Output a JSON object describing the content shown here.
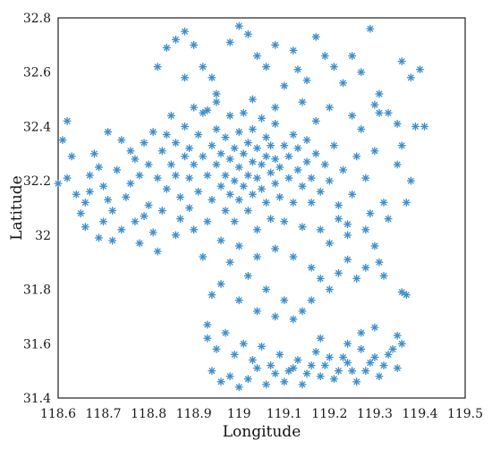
{
  "chart_data": {
    "type": "scatter",
    "title": "",
    "xlabel": "Longitude",
    "ylabel": "Latitude",
    "xlim": [
      118.6,
      119.5
    ],
    "ylim": [
      31.4,
      32.8
    ],
    "x_ticks": [
      118.6,
      118.7,
      118.8,
      118.9,
      119,
      119.1,
      119.2,
      119.3,
      119.4,
      119.5
    ],
    "x_tick_labels": [
      "118.6",
      "118.7",
      "118.8",
      "118.9",
      "119",
      "119.1",
      "119.2",
      "119.3",
      "119.4",
      "119.5"
    ],
    "y_ticks": [
      31.4,
      31.6,
      31.8,
      32,
      32.2,
      32.4,
      32.6,
      32.8
    ],
    "y_tick_labels": [
      "31.4",
      "31.6",
      "31.8",
      "32",
      "32.2",
      "32.4",
      "32.6",
      "32.8"
    ],
    "grid": true,
    "legend": "none",
    "marker": "asterisk",
    "series_color": "#3b8fcf",
    "series": [
      {
        "points": [
          [
            118.61,
            32.35
          ],
          [
            118.63,
            32.29
          ],
          [
            118.62,
            32.21
          ],
          [
            118.64,
            32.15
          ],
          [
            118.6,
            32.19
          ],
          [
            118.66,
            32.12
          ],
          [
            118.66,
            32.03
          ],
          [
            118.67,
            32.16
          ],
          [
            118.68,
            32.3
          ],
          [
            118.69,
            32.25
          ],
          [
            118.7,
            32.18
          ],
          [
            118.71,
            32.38
          ],
          [
            118.7,
            32.05
          ],
          [
            118.72,
            32.09
          ],
          [
            118.72,
            31.98
          ],
          [
            118.73,
            32.24
          ],
          [
            118.74,
            32.35
          ],
          [
            118.75,
            32.14
          ],
          [
            118.76,
            32.31
          ],
          [
            118.77,
            32.28
          ],
          [
            118.77,
            32.05
          ],
          [
            118.78,
            32.22
          ],
          [
            118.78,
            31.97
          ],
          [
            118.79,
            32.34
          ],
          [
            118.8,
            32.26
          ],
          [
            118.8,
            32.11
          ],
          [
            118.81,
            32.38
          ],
          [
            118.81,
            32.01
          ],
          [
            118.82,
            32.21
          ],
          [
            118.82,
            31.94
          ],
          [
            118.83,
            32.31
          ],
          [
            118.83,
            32.09
          ],
          [
            118.84,
            32.17
          ],
          [
            118.85,
            32.26
          ],
          [
            118.85,
            32.44
          ],
          [
            118.86,
            32.0
          ],
          [
            118.86,
            32.22
          ],
          [
            118.86,
            32.34
          ],
          [
            118.87,
            32.14
          ],
          [
            118.87,
            32.06
          ],
          [
            118.88,
            32.29
          ],
          [
            118.88,
            32.4
          ],
          [
            118.89,
            32.21
          ],
          [
            118.89,
            32.1
          ],
          [
            118.89,
            32.32
          ],
          [
            118.9,
            32.26
          ],
          [
            118.9,
            32.02
          ],
          [
            118.91,
            32.37
          ],
          [
            118.91,
            32.16
          ],
          [
            118.92,
            32.29
          ],
          [
            118.92,
            32.45
          ],
          [
            118.93,
            32.22
          ],
          [
            118.93,
            32.05
          ],
          [
            118.94,
            32.33
          ],
          [
            118.94,
            32.13
          ],
          [
            118.95,
            32.39
          ],
          [
            118.95,
            32.26
          ],
          [
            118.95,
            32.49
          ],
          [
            118.96,
            32.18
          ],
          [
            118.96,
            32.3
          ],
          [
            118.97,
            32.09
          ],
          [
            118.97,
            32.22
          ],
          [
            118.97,
            32.36
          ],
          [
            118.98,
            32.28
          ],
          [
            118.98,
            32.15
          ],
          [
            118.98,
            32.44
          ],
          [
            118.99,
            32.32
          ],
          [
            118.99,
            32.2
          ],
          [
            118.99,
            32.05
          ],
          [
            119.0,
            32.25
          ],
          [
            119.0,
            32.38
          ],
          [
            119.0,
            32.13
          ],
          [
            119.01,
            32.3
          ],
          [
            119.01,
            32.18
          ],
          [
            119.01,
            32.45
          ],
          [
            119.02,
            32.22
          ],
          [
            119.02,
            32.34
          ],
          [
            119.02,
            32.09
          ],
          [
            119.03,
            32.27
          ],
          [
            119.03,
            32.15
          ],
          [
            119.03,
            32.39
          ],
          [
            119.04,
            32.21
          ],
          [
            119.04,
            32.32
          ],
          [
            119.04,
            32.02
          ],
          [
            119.05,
            32.26
          ],
          [
            119.05,
            32.17
          ],
          [
            119.05,
            32.43
          ],
          [
            119.06,
            32.29
          ],
          [
            119.06,
            32.12
          ],
          [
            119.06,
            32.36
          ],
          [
            119.07,
            32.23
          ],
          [
            119.07,
            32.06
          ],
          [
            119.07,
            32.33
          ],
          [
            119.08,
            32.19
          ],
          [
            119.08,
            32.28
          ],
          [
            119.08,
            32.41
          ],
          [
            119.09,
            32.14
          ],
          [
            119.09,
            32.25
          ],
          [
            119.1,
            32.33
          ],
          [
            119.1,
            32.05
          ],
          [
            119.11,
            32.21
          ],
          [
            119.11,
            32.29
          ],
          [
            119.12,
            32.37
          ],
          [
            119.12,
            32.12
          ],
          [
            119.13,
            32.24
          ],
          [
            119.13,
            32.32
          ],
          [
            119.14,
            32.18
          ],
          [
            119.14,
            32.03
          ],
          [
            119.15,
            32.27
          ],
          [
            119.15,
            32.35
          ],
          [
            119.16,
            32.21
          ],
          [
            119.16,
            32.12
          ],
          [
            119.17,
            32.3
          ],
          [
            119.17,
            32.42
          ],
          [
            119.18,
            32.16
          ],
          [
            119.18,
            32.02
          ],
          [
            119.19,
            32.26
          ],
          [
            119.2,
            32.2
          ],
          [
            119.21,
            32.33
          ],
          [
            119.22,
            32.11
          ],
          [
            119.23,
            32.24
          ],
          [
            119.24,
            32.04
          ],
          [
            119.25,
            32.15
          ],
          [
            119.26,
            32.29
          ],
          [
            119.27,
            32.39
          ],
          [
            119.28,
            32.21
          ],
          [
            119.29,
            32.08
          ],
          [
            119.3,
            32.31
          ],
          [
            119.31,
            32.45
          ],
          [
            119.32,
            32.12
          ],
          [
            118.62,
            32.42
          ],
          [
            118.65,
            32.08
          ],
          [
            118.67,
            32.22
          ],
          [
            118.69,
            31.99
          ],
          [
            118.71,
            32.13
          ],
          [
            118.74,
            32.02
          ],
          [
            118.76,
            32.19
          ],
          [
            118.79,
            32.07
          ],
          [
            118.84,
            32.37
          ],
          [
            118.9,
            32.47
          ],
          [
            118.84,
            32.69
          ],
          [
            118.86,
            32.72
          ],
          [
            118.88,
            32.75
          ],
          [
            118.9,
            32.7
          ],
          [
            118.92,
            32.62
          ],
          [
            118.94,
            32.58
          ],
          [
            118.95,
            32.52
          ],
          [
            118.98,
            32.71
          ],
          [
            119.0,
            32.77
          ],
          [
            119.02,
            32.74
          ],
          [
            119.04,
            32.66
          ],
          [
            119.06,
            32.62
          ],
          [
            119.08,
            32.7
          ],
          [
            119.1,
            32.55
          ],
          [
            119.12,
            32.68
          ],
          [
            119.13,
            32.61
          ],
          [
            119.15,
            32.57
          ],
          [
            119.17,
            32.73
          ],
          [
            119.19,
            32.66
          ],
          [
            119.21,
            32.62
          ],
          [
            119.23,
            32.56
          ],
          [
            119.25,
            32.66
          ],
          [
            119.27,
            32.6
          ],
          [
            119.29,
            32.76
          ],
          [
            119.31,
            32.52
          ],
          [
            119.33,
            32.45
          ],
          [
            119.36,
            32.64
          ],
          [
            119.38,
            32.58
          ],
          [
            119.4,
            32.61
          ],
          [
            118.88,
            32.58
          ],
          [
            118.82,
            32.62
          ],
          [
            118.93,
            32.46
          ],
          [
            119.03,
            32.5
          ],
          [
            119.08,
            32.47
          ],
          [
            119.14,
            32.49
          ],
          [
            119.2,
            32.47
          ],
          [
            119.25,
            32.44
          ],
          [
            119.3,
            32.48
          ],
          [
            119.35,
            32.41
          ],
          [
            119.39,
            32.4
          ],
          [
            119.41,
            32.4
          ],
          [
            119.36,
            32.33
          ],
          [
            119.38,
            32.2
          ],
          [
            119.37,
            32.12
          ],
          [
            119.35,
            32.26
          ],
          [
            119.33,
            32.06
          ],
          [
            119.3,
            31.96
          ],
          [
            119.28,
            31.88
          ],
          [
            119.26,
            31.84
          ],
          [
            119.24,
            31.91
          ],
          [
            119.22,
            31.86
          ],
          [
            119.2,
            31.8
          ],
          [
            119.18,
            31.84
          ],
          [
            119.16,
            31.76
          ],
          [
            119.14,
            31.72
          ],
          [
            119.12,
            31.69
          ],
          [
            119.1,
            31.76
          ],
          [
            119.08,
            31.7
          ],
          [
            119.06,
            31.8
          ],
          [
            119.04,
            31.72
          ],
          [
            119.02,
            31.85
          ],
          [
            119.0,
            31.76
          ],
          [
            118.98,
            31.9
          ],
          [
            118.96,
            31.82
          ],
          [
            118.94,
            31.78
          ],
          [
            118.92,
            31.92
          ],
          [
            118.96,
            31.98
          ],
          [
            119.0,
            31.96
          ],
          [
            119.04,
            31.92
          ],
          [
            119.08,
            31.95
          ],
          [
            119.12,
            31.92
          ],
          [
            119.16,
            31.88
          ],
          [
            119.2,
            31.97
          ],
          [
            119.24,
            32.0
          ],
          [
            119.28,
            32.02
          ],
          [
            119.32,
            31.85
          ],
          [
            119.36,
            31.79
          ],
          [
            119.37,
            31.78
          ],
          [
            119.31,
            31.9
          ],
          [
            119.22,
            32.06
          ],
          [
            118.93,
            31.62
          ],
          [
            118.95,
            31.58
          ],
          [
            118.97,
            31.64
          ],
          [
            118.99,
            31.56
          ],
          [
            119.01,
            31.6
          ],
          [
            119.03,
            31.54
          ],
          [
            119.05,
            31.59
          ],
          [
            119.07,
            31.52
          ],
          [
            119.09,
            31.56
          ],
          [
            119.11,
            31.5
          ],
          [
            119.13,
            31.54
          ],
          [
            119.15,
            31.49
          ],
          [
            119.17,
            31.57
          ],
          [
            119.19,
            31.52
          ],
          [
            119.21,
            31.47
          ],
          [
            119.23,
            31.55
          ],
          [
            119.25,
            31.5
          ],
          [
            119.27,
            31.58
          ],
          [
            119.29,
            31.53
          ],
          [
            119.31,
            31.48
          ],
          [
            119.33,
            31.56
          ],
          [
            119.35,
            31.51
          ],
          [
            119.36,
            31.6
          ],
          [
            118.94,
            31.5
          ],
          [
            118.96,
            31.46
          ],
          [
            118.98,
            31.48
          ],
          [
            119.0,
            31.44
          ],
          [
            119.02,
            31.47
          ],
          [
            119.04,
            31.51
          ],
          [
            119.06,
            31.45
          ],
          [
            119.08,
            31.49
          ],
          [
            119.1,
            31.46
          ],
          [
            119.12,
            31.51
          ],
          [
            119.14,
            31.45
          ],
          [
            119.16,
            31.52
          ],
          [
            119.18,
            31.48
          ],
          [
            119.2,
            31.55
          ],
          [
            119.22,
            31.5
          ],
          [
            119.24,
            31.53
          ],
          [
            119.26,
            31.46
          ],
          [
            119.28,
            31.5
          ],
          [
            119.3,
            31.55
          ],
          [
            119.32,
            31.52
          ],
          [
            119.34,
            31.58
          ],
          [
            119.35,
            31.63
          ],
          [
            118.93,
            31.67
          ],
          [
            119.18,
            31.62
          ],
          [
            119.24,
            31.6
          ],
          [
            119.27,
            31.64
          ],
          [
            119.3,
            31.66
          ]
        ]
      }
    ]
  }
}
